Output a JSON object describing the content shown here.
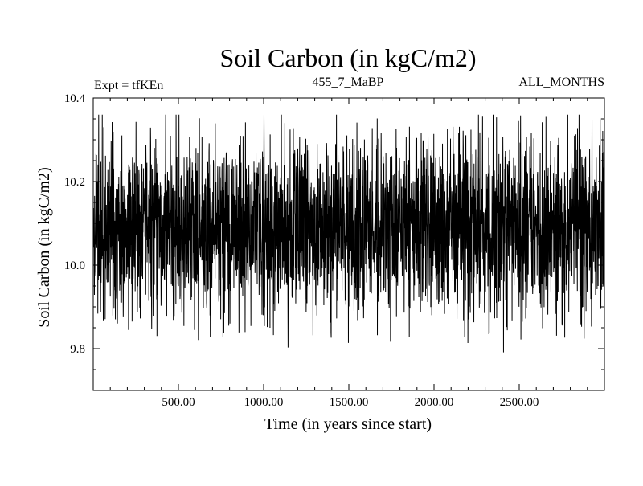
{
  "chart_data": {
    "type": "line",
    "title": "Soil Carbon (in kgC/m2)",
    "subtitle_left": "Expt = tfKEn",
    "subtitle_center": "455_7_MaBP",
    "subtitle_right": "ALL_MONTHS",
    "xlabel": "Time (in years since start)",
    "ylabel": "Soil Carbon (in kgC/m2)",
    "xlim": [
      0,
      3000
    ],
    "ylim": [
      9.7,
      10.4
    ],
    "xticks": [
      500,
      1000,
      1500,
      2000,
      2500
    ],
    "xtick_labels": [
      "500.00",
      "1000.00",
      "1500.00",
      "2000.00",
      "2500.00"
    ],
    "yticks": [
      9.8,
      10.0,
      10.2,
      10.4
    ],
    "ytick_labels": [
      "9.8",
      "10.0",
      "10.2",
      "10.4"
    ],
    "grid": false,
    "legend": "none",
    "line_color": "#000000",
    "series_summary": {
      "points": 3000,
      "mean": 10.09,
      "typical_min": 9.87,
      "typical_max": 10.31,
      "observed_min": 9.76,
      "observed_max": 10.36
    }
  }
}
